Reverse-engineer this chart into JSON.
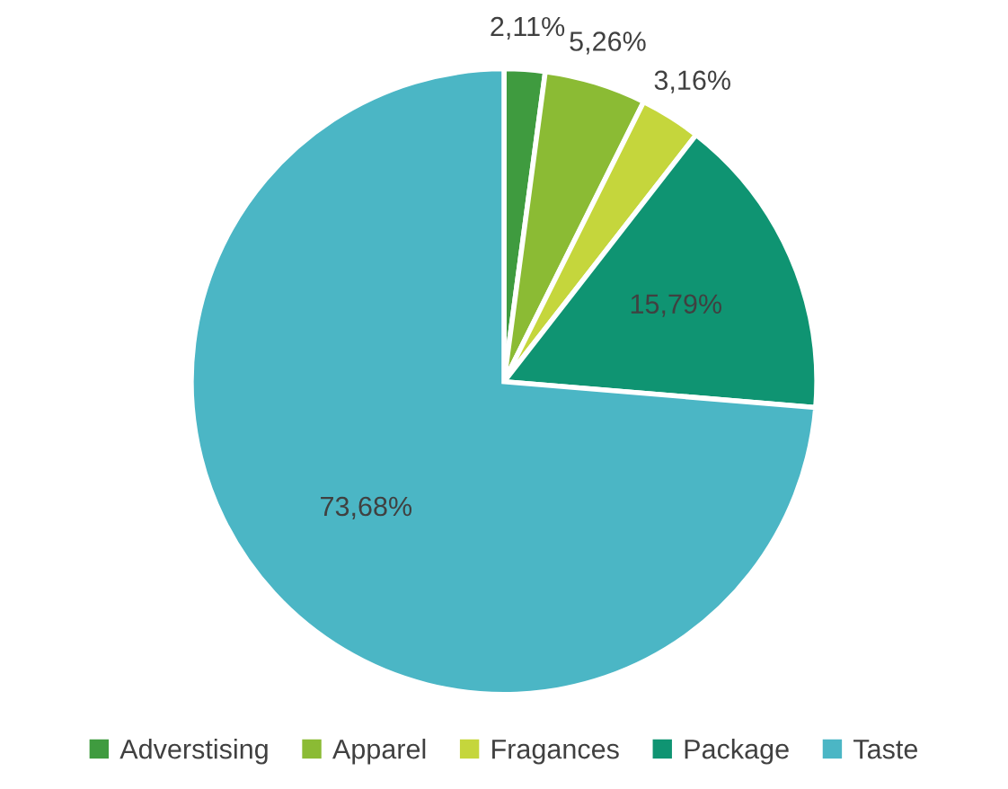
{
  "chart_data": {
    "type": "pie",
    "categories": [
      "Adverstising",
      "Apparel",
      "Fragances",
      "Package",
      "Taste"
    ],
    "values": [
      2.11,
      5.26,
      3.16,
      15.79,
      73.68
    ],
    "colors": [
      "#3f9b3f",
      "#8bbb34",
      "#c5d63c",
      "#0f9472",
      "#4bb6c5"
    ],
    "value_labels": [
      "2,11%",
      "5,26%",
      "3,16%",
      "15,79%",
      "73,68%"
    ],
    "legend": "bottom"
  }
}
